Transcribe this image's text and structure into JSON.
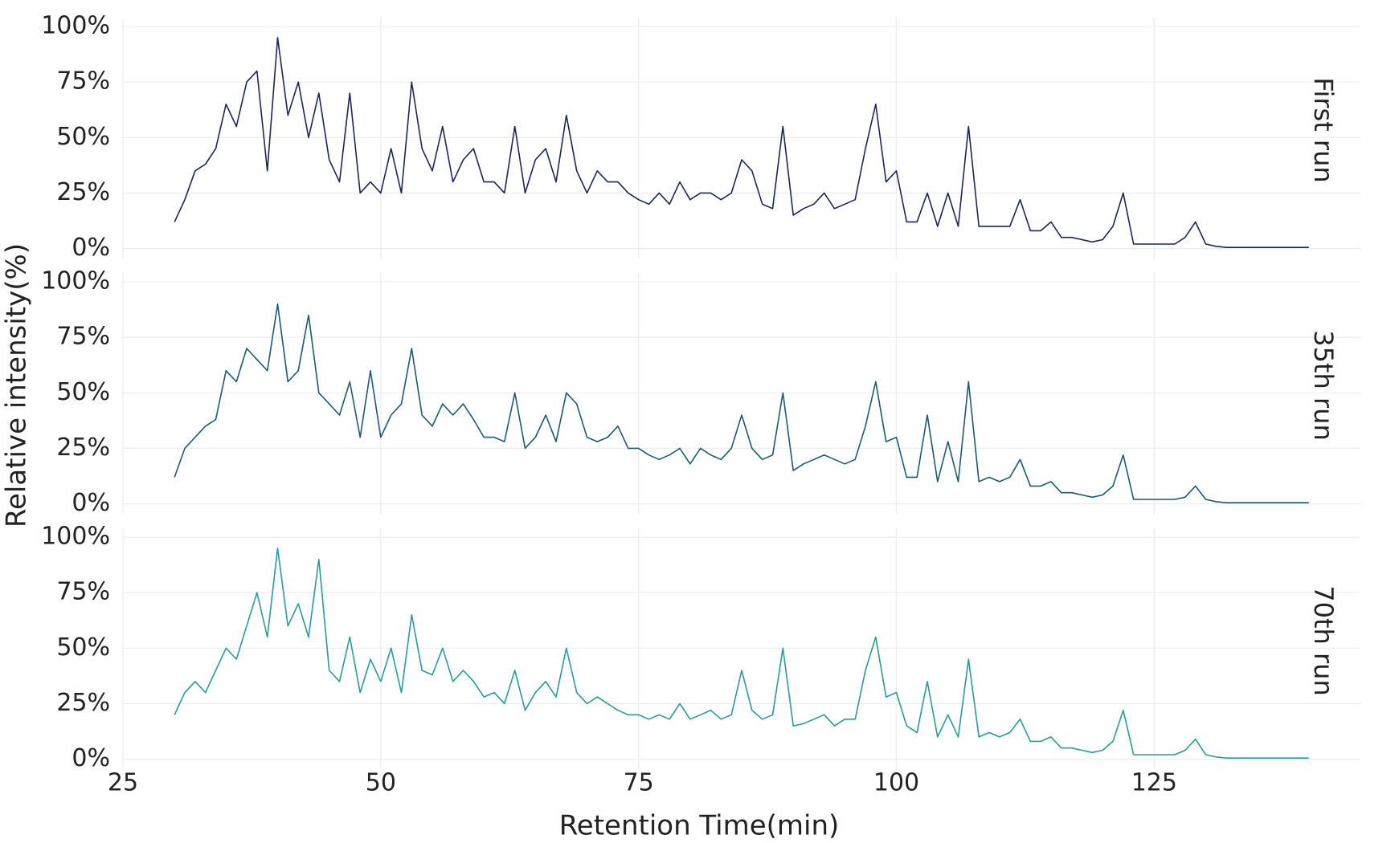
{
  "chart_data": {
    "type": "line",
    "xlabel": "Retention Time(min)",
    "ylabel": "Relative intensity(%)",
    "xlim": [
      25,
      145
    ],
    "xticks": [
      25,
      50,
      75,
      100,
      125
    ],
    "ylim": [
      -4.5,
      104
    ],
    "yticks": [
      {
        "value": 0,
        "label": "0%"
      },
      {
        "value": 25,
        "label": "25%"
      },
      {
        "value": 50,
        "label": "50%"
      },
      {
        "value": 75,
        "label": "75%"
      },
      {
        "value": 100,
        "label": "100%"
      }
    ],
    "grid": true,
    "x": [
      30,
      31,
      32,
      33,
      34,
      35,
      36,
      37,
      38,
      39,
      40,
      41,
      42,
      43,
      44,
      45,
      46,
      47,
      48,
      49,
      50,
      51,
      52,
      53,
      54,
      55,
      56,
      57,
      58,
      59,
      60,
      61,
      62,
      63,
      64,
      65,
      66,
      67,
      68,
      69,
      70,
      71,
      72,
      73,
      74,
      75,
      76,
      77,
      78,
      79,
      80,
      81,
      82,
      83,
      84,
      85,
      86,
      87,
      88,
      89,
      90,
      91,
      92,
      93,
      94,
      95,
      96,
      97,
      98,
      99,
      100,
      101,
      102,
      103,
      104,
      105,
      106,
      107,
      108,
      109,
      110,
      111,
      112,
      113,
      114,
      115,
      116,
      117,
      118,
      119,
      120,
      121,
      122,
      123,
      124,
      125,
      126,
      127,
      128,
      129,
      130,
      131,
      132,
      133,
      134,
      135,
      136,
      137,
      138,
      139,
      140
    ],
    "series": [
      {
        "name": "First run",
        "color": "#1c2658",
        "values": [
          12,
          22,
          35,
          38,
          45,
          65,
          55,
          75,
          80,
          35,
          95,
          60,
          75,
          50,
          70,
          40,
          30,
          70,
          25,
          30,
          25,
          45,
          25,
          75,
          45,
          35,
          55,
          30,
          40,
          45,
          30,
          30,
          25,
          55,
          25,
          40,
          45,
          30,
          60,
          35,
          25,
          35,
          30,
          30,
          25,
          22,
          20,
          25,
          20,
          30,
          22,
          25,
          25,
          22,
          25,
          40,
          35,
          20,
          18,
          55,
          15,
          18,
          20,
          25,
          18,
          20,
          22,
          45,
          65,
          30,
          35,
          12,
          12,
          25,
          10,
          25,
          10,
          55,
          10,
          10,
          10,
          10,
          22,
          8,
          8,
          12,
          5,
          5,
          4,
          3,
          4,
          10,
          25,
          2,
          2,
          2,
          2,
          2,
          5,
          12,
          2,
          1,
          0.5,
          0.5,
          0.5,
          0.5,
          0.5,
          0.5,
          0.5,
          0.5,
          0.5
        ]
      },
      {
        "name": "35th run",
        "color": "#1d5a72",
        "values": [
          12,
          25,
          30,
          35,
          38,
          60,
          55,
          70,
          65,
          60,
          90,
          55,
          60,
          85,
          50,
          45,
          40,
          55,
          30,
          60,
          30,
          40,
          45,
          70,
          40,
          35,
          45,
          40,
          45,
          38,
          30,
          30,
          28,
          50,
          25,
          30,
          40,
          28,
          50,
          45,
          30,
          28,
          30,
          35,
          25,
          25,
          22,
          20,
          22,
          25,
          18,
          25,
          22,
          20,
          25,
          40,
          25,
          20,
          22,
          50,
          15,
          18,
          20,
          22,
          20,
          18,
          20,
          35,
          55,
          28,
          30,
          12,
          12,
          40,
          10,
          28,
          10,
          55,
          10,
          12,
          10,
          12,
          20,
          8,
          8,
          10,
          5,
          5,
          4,
          3,
          4,
          8,
          22,
          2,
          2,
          2,
          2,
          2,
          3,
          8,
          2,
          1,
          0.5,
          0.5,
          0.5,
          0.5,
          0.5,
          0.5,
          0.5,
          0.5,
          0.5
        ]
      },
      {
        "name": "70th run",
        "color": "#2a9b98",
        "values": [
          20,
          30,
          35,
          30,
          40,
          50,
          45,
          60,
          75,
          55,
          95,
          60,
          70,
          55,
          90,
          40,
          35,
          55,
          30,
          45,
          35,
          50,
          30,
          65,
          40,
          38,
          50,
          35,
          40,
          35,
          28,
          30,
          25,
          40,
          22,
          30,
          35,
          28,
          50,
          30,
          25,
          28,
          25,
          22,
          20,
          20,
          18,
          20,
          18,
          25,
          18,
          20,
          22,
          18,
          20,
          40,
          22,
          18,
          20,
          50,
          15,
          16,
          18,
          20,
          15,
          18,
          18,
          40,
          55,
          28,
          30,
          15,
          12,
          35,
          10,
          20,
          10,
          45,
          10,
          12,
          10,
          12,
          18,
          8,
          8,
          10,
          5,
          5,
          4,
          3,
          4,
          8,
          22,
          2,
          2,
          2,
          2,
          2,
          4,
          9,
          2,
          1,
          0.5,
          0.5,
          0.5,
          0.5,
          0.5,
          0.5,
          0.5,
          0.5,
          0.5
        ]
      }
    ]
  }
}
